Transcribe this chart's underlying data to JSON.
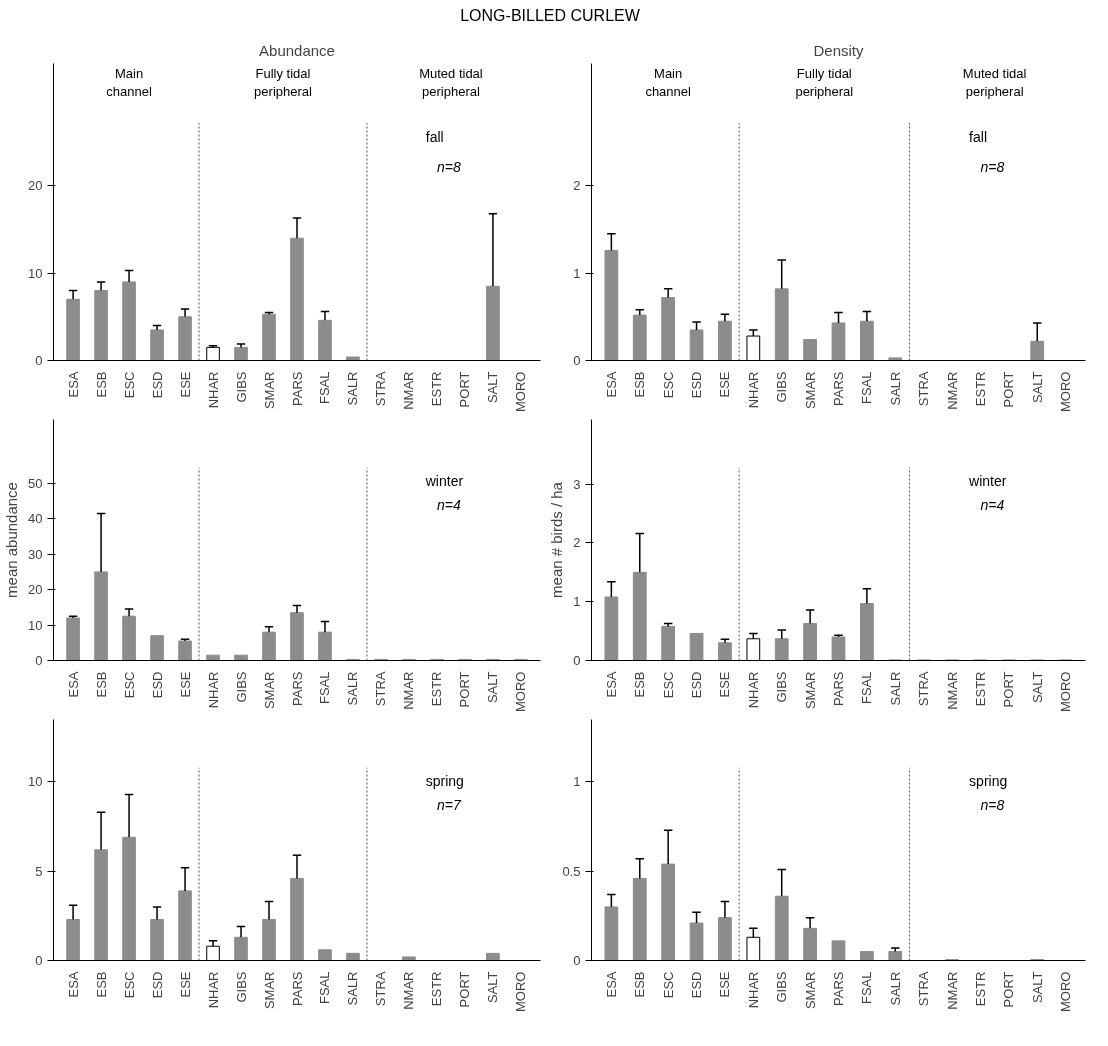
{
  "chart_data": [
    {
      "type": "bar",
      "title": "Abundance",
      "annotations": [
        "LONG-BILLED CURLEW",
        "Main\nchannel",
        "Fully tidal\nperipheral",
        "Muted tidal\nperipheral",
        "fall",
        "n=8"
      ],
      "categories": [
        "ESA",
        "ESB",
        "ESC",
        "ESD",
        "ESE",
        "NHAR",
        "GIBS",
        "SMAR",
        "PARS",
        "FSAL",
        "SALR",
        "STRA",
        "NMAR",
        "ESTR",
        "PORT",
        "SALT",
        "MORO"
      ],
      "values": [
        7,
        8,
        9,
        3.5,
        5,
        1.5,
        1.5,
        5.3,
        14,
        4.6,
        0.4,
        0,
        0,
        0,
        0,
        8.5,
        0
      ],
      "errors": [
        [
          7,
          8
        ],
        [
          8,
          9
        ],
        [
          9,
          10.3
        ],
        [
          3.5,
          4
        ],
        [
          5,
          5.9
        ],
        [
          1.5,
          1.7
        ],
        [
          1.5,
          1.9
        ],
        [
          5.3,
          5.5
        ],
        [
          14,
          16.3
        ],
        [
          4.6,
          5.6
        ],
        null,
        null,
        null,
        null,
        null,
        [
          8.5,
          16.8
        ],
        null
      ],
      "colors": [
        "#8c8c8c",
        "#8c8c8c",
        "#8c8c8c",
        "#8c8c8c",
        "#8c8c8c",
        "#ffffff",
        "#8c8c8c",
        "#8c8c8c",
        "#8c8c8c",
        "#8c8c8c",
        "#8c8c8c",
        "#8c8c8c",
        "#8c8c8c",
        "#8c8c8c",
        "#8c8c8c",
        "#8c8c8c",
        "#8c8c8c"
      ],
      "ylim": [
        0,
        34
      ],
      "yticks": [
        0,
        10,
        20
      ]
    },
    {
      "type": "bar",
      "title": "Density",
      "annotations": [
        "Main\nchannel",
        "Fully tidal\nperipheral",
        "Muted tidal\nperipheral",
        "fall",
        "n=8"
      ],
      "categories": [
        "ESA",
        "ESB",
        "ESC",
        "ESD",
        "ESE",
        "NHAR",
        "GIBS",
        "SMAR",
        "PARS",
        "FSAL",
        "SALR",
        "STRA",
        "NMAR",
        "ESTR",
        "PORT",
        "SALT",
        "MORO"
      ],
      "values": [
        1.26,
        0.52,
        0.72,
        0.35,
        0.45,
        0.28,
        0.82,
        0.24,
        0.43,
        0.45,
        0.03,
        0,
        0,
        0,
        0,
        0.22,
        0
      ],
      "errors": [
        [
          1.26,
          1.45
        ],
        [
          0.52,
          0.58
        ],
        [
          0.72,
          0.82
        ],
        [
          0.35,
          0.44
        ],
        [
          0.45,
          0.53
        ],
        [
          0.28,
          0.35
        ],
        [
          0.82,
          1.15
        ],
        null,
        [
          0.43,
          0.55
        ],
        [
          0.45,
          0.56
        ],
        null,
        null,
        null,
        null,
        null,
        [
          0.22,
          0.43
        ],
        null
      ],
      "colors": [
        "#8c8c8c",
        "#8c8c8c",
        "#8c8c8c",
        "#8c8c8c",
        "#8c8c8c",
        "#ffffff",
        "#8c8c8c",
        "#8c8c8c",
        "#8c8c8c",
        "#8c8c8c",
        "#8c8c8c",
        "#8c8c8c",
        "#8c8c8c",
        "#8c8c8c",
        "#8c8c8c",
        "#8c8c8c",
        "#8c8c8c"
      ],
      "ylim": [
        0,
        3.4
      ],
      "yticks": [
        0,
        1,
        2
      ]
    },
    {
      "type": "bar",
      "ylabel": "mean abundance",
      "annotations": [
        "winter",
        "n=4"
      ],
      "categories": [
        "ESA",
        "ESB",
        "ESC",
        "ESD",
        "ESE",
        "NHAR",
        "GIBS",
        "SMAR",
        "PARS",
        "FSAL",
        "SALR",
        "STRA",
        "NMAR",
        "ESTR",
        "PORT",
        "SALT",
        "MORO"
      ],
      "values": [
        12,
        25,
        12.5,
        7,
        5.5,
        1.5,
        1.5,
        8,
        13.5,
        8,
        0.3,
        0.3,
        0.3,
        0.3,
        0.3,
        0.3,
        0.3
      ],
      "errors": [
        [
          12,
          12.5
        ],
        [
          25,
          41.5
        ],
        [
          12.5,
          14.5
        ],
        null,
        [
          5.5,
          6
        ],
        null,
        null,
        [
          8,
          9.5
        ],
        [
          13.5,
          15.5
        ],
        [
          8,
          11
        ],
        null,
        null,
        null,
        null,
        null,
        null,
        null
      ],
      "colors": [
        "#8c8c8c",
        "#8c8c8c",
        "#8c8c8c",
        "#8c8c8c",
        "#8c8c8c",
        "#8c8c8c",
        "#8c8c8c",
        "#8c8c8c",
        "#8c8c8c",
        "#8c8c8c",
        "#8c8c8c",
        "#8c8c8c",
        "#8c8c8c",
        "#8c8c8c",
        "#8c8c8c",
        "#8c8c8c",
        "#8c8c8c"
      ],
      "ylim": [
        0,
        68
      ],
      "yticks": [
        0,
        10,
        20,
        30,
        40,
        50
      ]
    },
    {
      "type": "bar",
      "ylabel": "mean # birds / ha",
      "annotations": [
        "winter",
        "n=4"
      ],
      "categories": [
        "ESA",
        "ESB",
        "ESC",
        "ESD",
        "ESE",
        "NHAR",
        "GIBS",
        "SMAR",
        "PARS",
        "FSAL",
        "SALR",
        "STRA",
        "NMAR",
        "ESTR",
        "PORT",
        "SALT",
        "MORO"
      ],
      "values": [
        1.08,
        1.5,
        0.58,
        0.46,
        0.3,
        0.37,
        0.37,
        0.63,
        0.4,
        0.97,
        0.01,
        0.01,
        0.01,
        0.01,
        0.01,
        0.01,
        0.01
      ],
      "errors": [
        [
          1.08,
          1.34
        ],
        [
          1.5,
          2.16
        ],
        [
          0.58,
          0.63
        ],
        null,
        [
          0.3,
          0.36
        ],
        [
          0.37,
          0.46
        ],
        [
          0.37,
          0.52
        ],
        [
          0.63,
          0.86
        ],
        [
          0.4,
          0.43
        ],
        [
          0.97,
          1.22
        ],
        null,
        null,
        null,
        null,
        null,
        null,
        null
      ],
      "colors": [
        "#8c8c8c",
        "#8c8c8c",
        "#8c8c8c",
        "#8c8c8c",
        "#8c8c8c",
        "#ffffff",
        "#8c8c8c",
        "#8c8c8c",
        "#8c8c8c",
        "#8c8c8c",
        "#8c8c8c",
        "#8c8c8c",
        "#8c8c8c",
        "#8c8c8c",
        "#8c8c8c",
        "#8c8c8c",
        "#8c8c8c"
      ],
      "ylim": [
        0,
        4.1
      ],
      "yticks": [
        0,
        1,
        2,
        3
      ]
    },
    {
      "type": "bar",
      "annotations": [
        "spring",
        "n=7"
      ],
      "categories": [
        "ESA",
        "ESB",
        "ESC",
        "ESD",
        "ESE",
        "NHAR",
        "GIBS",
        "SMAR",
        "PARS",
        "FSAL",
        "SALR",
        "STRA",
        "NMAR",
        "ESTR",
        "PORT",
        "SALT",
        "MORO"
      ],
      "values": [
        2.3,
        6.2,
        6.9,
        2.3,
        3.9,
        0.8,
        1.3,
        2.3,
        4.6,
        0.6,
        0.4,
        0,
        0.2,
        0,
        0,
        0.4,
        0
      ],
      "errors": [
        [
          2.3,
          3.1
        ],
        [
          6.2,
          8.3
        ],
        [
          6.9,
          9.3
        ],
        [
          2.3,
          3
        ],
        [
          3.9,
          5.2
        ],
        [
          0.8,
          1.1
        ],
        [
          1.3,
          1.9
        ],
        [
          2.3,
          3.3
        ],
        [
          4.6,
          5.9
        ],
        null,
        null,
        null,
        null,
        null,
        null,
        null,
        null
      ],
      "colors": [
        "#8c8c8c",
        "#8c8c8c",
        "#8c8c8c",
        "#8c8c8c",
        "#8c8c8c",
        "#ffffff",
        "#8c8c8c",
        "#8c8c8c",
        "#8c8c8c",
        "#8c8c8c",
        "#8c8c8c",
        "#8c8c8c",
        "#8c8c8c",
        "#8c8c8c",
        "#8c8c8c",
        "#8c8c8c",
        "#8c8c8c"
      ],
      "ylim": [
        0,
        13.5
      ],
      "yticks": [
        0,
        5,
        10
      ]
    },
    {
      "type": "bar",
      "annotations": [
        "spring",
        "n=8"
      ],
      "categories": [
        "ESA",
        "ESB",
        "ESC",
        "ESD",
        "ESE",
        "NHAR",
        "GIBS",
        "SMAR",
        "PARS",
        "FSAL",
        "SALR",
        "STRA",
        "NMAR",
        "ESTR",
        "PORT",
        "SALT",
        "MORO"
      ],
      "values": [
        0.3,
        0.46,
        0.54,
        0.21,
        0.24,
        0.13,
        0.36,
        0.18,
        0.11,
        0.05,
        0.05,
        0,
        0.005,
        0,
        0,
        0.005,
        0
      ],
      "errors": [
        [
          0.3,
          0.37
        ],
        [
          0.46,
          0.57
        ],
        [
          0.54,
          0.73
        ],
        [
          0.21,
          0.27
        ],
        [
          0.24,
          0.33
        ],
        [
          0.13,
          0.18
        ],
        [
          0.36,
          0.51
        ],
        [
          0.18,
          0.24
        ],
        null,
        null,
        [
          0.05,
          0.07
        ],
        null,
        null,
        null,
        null,
        null,
        null
      ],
      "colors": [
        "#8c8c8c",
        "#8c8c8c",
        "#8c8c8c",
        "#8c8c8c",
        "#8c8c8c",
        "#ffffff",
        "#8c8c8c",
        "#8c8c8c",
        "#8c8c8c",
        "#8c8c8c",
        "#8c8c8c",
        "#8c8c8c",
        "#8c8c8c",
        "#8c8c8c",
        "#8c8c8c",
        "#8c8c8c",
        "#8c8c8c"
      ],
      "ylim": [
        0,
        1.35
      ],
      "yticks": [
        0,
        0.5,
        1
      ]
    }
  ]
}
